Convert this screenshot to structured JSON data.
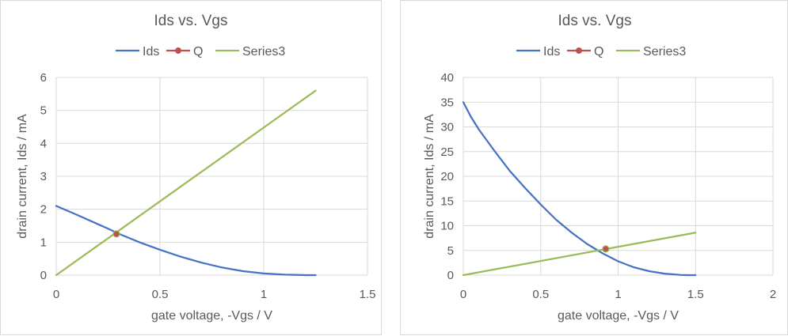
{
  "colors": {
    "ids": "#4472c4",
    "q": "#c0504d",
    "series3": "#9bbb59",
    "grid": "#d9d9d9",
    "text": "#595959"
  },
  "chart_data": [
    {
      "type": "line",
      "title": "Ids vs. Vgs",
      "xlabel": "gate voltage, -Vgs / V",
      "ylabel": "drain current, Ids / mA",
      "xlim": [
        0,
        1.5
      ],
      "ylim": [
        0,
        6
      ],
      "xticks": [
        0,
        0.5,
        1,
        1.5
      ],
      "yticks": [
        0,
        1,
        2,
        3,
        4,
        5,
        6
      ],
      "xtick_labels": [
        "0",
        "0.5",
        "1",
        "1.5"
      ],
      "ytick_labels": [
        "0",
        "1",
        "2",
        "3",
        "4",
        "5",
        "6"
      ],
      "grid": true,
      "legend_position": "top",
      "series": [
        {
          "name": "Ids",
          "color_key": "ids",
          "marker": false,
          "x": [
            0,
            0.1,
            0.2,
            0.25,
            0.3,
            0.4,
            0.5,
            0.6,
            0.7,
            0.8,
            0.9,
            1.0,
            1.1,
            1.2,
            1.25
          ],
          "y": [
            2.1,
            1.83,
            1.55,
            1.41,
            1.26,
            1.0,
            0.77,
            0.56,
            0.38,
            0.23,
            0.12,
            0.05,
            0.015,
            0.0,
            0.0
          ]
        },
        {
          "name": "Q",
          "color_key": "q",
          "marker": true,
          "x": [
            0.29
          ],
          "y": [
            1.25
          ]
        },
        {
          "name": "Series3",
          "color_key": "series3",
          "marker": false,
          "x": [
            0,
            1.25
          ],
          "y": [
            0,
            5.6
          ]
        }
      ]
    },
    {
      "type": "line",
      "title": "Ids vs. Vgs",
      "xlabel": "gate voltage, -Vgs / V",
      "ylabel": "drain current, Ids / mA",
      "xlim": [
        0,
        2
      ],
      "ylim": [
        0,
        40
      ],
      "xticks": [
        0,
        0.5,
        1,
        1.5,
        2
      ],
      "yticks": [
        0,
        5,
        10,
        15,
        20,
        25,
        30,
        35,
        40
      ],
      "xtick_labels": [
        "0",
        "0.5",
        "1",
        "1.5",
        "2"
      ],
      "ytick_labels": [
        "0",
        "5",
        "10",
        "15",
        "20",
        "25",
        "30",
        "35",
        "40"
      ],
      "grid": true,
      "legend_position": "top",
      "series": [
        {
          "name": "Ids",
          "color_key": "ids",
          "marker": false,
          "x": [
            0,
            0.05,
            0.1,
            0.2,
            0.3,
            0.4,
            0.5,
            0.6,
            0.7,
            0.8,
            0.9,
            1.0,
            1.1,
            1.2,
            1.3,
            1.4,
            1.45,
            1.5
          ],
          "y": [
            35,
            32,
            29.5,
            25.2,
            21.1,
            17.6,
            14.3,
            11.2,
            8.6,
            6.3,
            4.4,
            2.8,
            1.6,
            0.8,
            0.3,
            0.05,
            0.0,
            0.0
          ]
        },
        {
          "name": "Q",
          "color_key": "q",
          "marker": true,
          "x": [
            0.92
          ],
          "y": [
            5.3
          ]
        },
        {
          "name": "Series3",
          "color_key": "series3",
          "marker": false,
          "x": [
            0,
            1.5
          ],
          "y": [
            0,
            8.6
          ]
        }
      ]
    }
  ]
}
